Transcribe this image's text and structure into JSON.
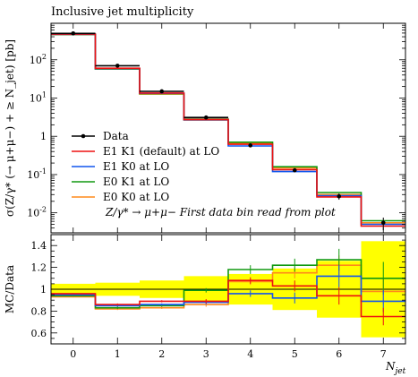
{
  "title": "Inclusive jet multiplicity",
  "chart_data": [
    {
      "type": "line",
      "panel": "main",
      "title": "Inclusive jet multiplicity",
      "xlabel": "N_jet",
      "ylabel": "σ(Z/γ* (→ μ+μ−) + ≥ N_jet) [pb]",
      "yscale": "log",
      "ylim": [
        0.003,
        900
      ],
      "xlim": [
        -0.5,
        7.5
      ],
      "x_bins": [
        [
          -0.5,
          0.5
        ],
        [
          0.5,
          1.5
        ],
        [
          1.5,
          2.5
        ],
        [
          2.5,
          3.5
        ],
        [
          3.5,
          4.5
        ],
        [
          4.5,
          5.5
        ],
        [
          5.5,
          6.5
        ],
        [
          6.5,
          7.5
        ]
      ],
      "ytick_labels": [
        "10^2",
        "10^1",
        "1",
        "10^-1",
        "10^-2"
      ],
      "data": {
        "name": "Data",
        "x": [
          0,
          1,
          2,
          3,
          4,
          5,
          6,
          7
        ],
        "y": [
          490,
          70,
          15,
          3.1,
          0.58,
          0.13,
          0.027,
          0.0055
        ],
        "yerr": [
          10,
          2,
          0.5,
          0.15,
          0.05,
          0.015,
          0.005,
          0.002
        ]
      },
      "series": [
        {
          "name": "E1 K1 (default) at LO",
          "color": "#ee1111",
          "values": [
            470,
            60,
            13.5,
            2.75,
            0.62,
            0.135,
            0.026,
            0.0045
          ]
        },
        {
          "name": "E1 K0 at LO",
          "color": "#1155ee",
          "values": [
            465,
            59,
            13.3,
            2.7,
            0.56,
            0.12,
            0.028,
            0.005
          ]
        },
        {
          "name": "E0 K1 at LO",
          "color": "#119911",
          "values": [
            460,
            58,
            13.0,
            2.8,
            0.7,
            0.16,
            0.034,
            0.0062
          ]
        },
        {
          "name": "E0 K0 at LO",
          "color": "#ff8a1a",
          "values": [
            455,
            57,
            12.7,
            2.65,
            0.65,
            0.15,
            0.03,
            0.0055
          ]
        }
      ],
      "legend": {
        "placement": "lower-left",
        "data_label": "Data",
        "labels": [
          "E1 K1 (default) at LO",
          "E1 K0 at LO",
          "E0 K1 at LO",
          "E0 K0 at LO"
        ],
        "note": "Z/γ* → μ+μ− First data bin read from plot"
      }
    },
    {
      "type": "line",
      "panel": "ratio",
      "ylabel": "MC/Data",
      "xlabel": "N_jet",
      "ylim": [
        0.5,
        1.5
      ],
      "xlim": [
        -0.5,
        7.5
      ],
      "ytick_labels": [
        "1.4",
        "1.2",
        "1",
        "0.8",
        "0.6"
      ],
      "xtick_labels": [
        "0",
        "1",
        "2",
        "3",
        "4",
        "5",
        "6",
        "7"
      ],
      "band_color": "#ffff00",
      "data_uncertainty_band": [
        [
          0.95,
          1.05
        ],
        [
          0.94,
          1.06
        ],
        [
          0.92,
          1.08
        ],
        [
          0.88,
          1.12
        ],
        [
          0.86,
          1.14
        ],
        [
          0.81,
          1.19
        ],
        [
          0.74,
          1.26
        ],
        [
          0.56,
          1.44
        ]
      ],
      "series": [
        {
          "name": "E1 K1 (default) at LO",
          "color": "#ee1111",
          "values": [
            0.96,
            0.86,
            0.89,
            0.89,
            1.08,
            1.03,
            0.94,
            0.75
          ],
          "err": [
            0.005,
            0.01,
            0.01,
            0.02,
            0.03,
            0.05,
            0.08,
            0.08
          ]
        },
        {
          "name": "E1 K0 at LO",
          "color": "#1155ee",
          "values": [
            0.95,
            0.85,
            0.86,
            0.88,
            0.96,
            0.92,
            1.12,
            0.89
          ],
          "err": [
            0.005,
            0.01,
            0.01,
            0.02,
            0.03,
            0.05,
            0.1,
            0.1
          ]
        },
        {
          "name": "E0 K1 at LO",
          "color": "#119911",
          "values": [
            0.94,
            0.83,
            0.85,
            0.99,
            1.18,
            1.22,
            1.27,
            1.1
          ],
          "err": [
            0.005,
            0.01,
            0.01,
            0.02,
            0.04,
            0.06,
            0.1,
            0.15
          ]
        },
        {
          "name": "E0 K0 at LO",
          "color": "#ff8a1a",
          "values": [
            0.93,
            0.82,
            0.83,
            0.86,
            1.07,
            1.15,
            1.22,
            0.98
          ],
          "err": [
            0.005,
            0.01,
            0.01,
            0.02,
            0.03,
            0.05,
            0.09,
            0.12
          ]
        }
      ]
    }
  ]
}
